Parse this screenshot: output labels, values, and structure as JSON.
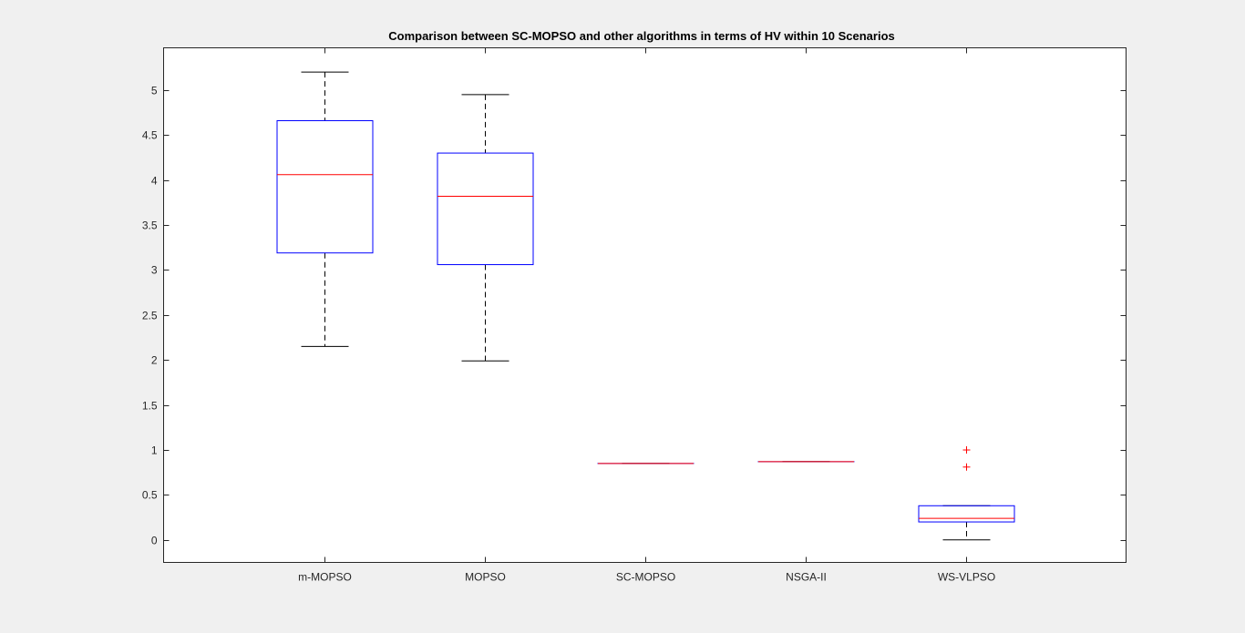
{
  "figure": {
    "background": "#f0f0f0",
    "axes_background": "#ffffff"
  },
  "chart_data": {
    "type": "boxplot",
    "title": "Comparison between SC-MOPSO and other algorithms in terms of HV within 10 Scenarios",
    "xlabel": "",
    "ylabel": "",
    "ylim": [
      -0.25,
      5.47
    ],
    "yticks": [
      0,
      0.5,
      1,
      1.5,
      2,
      2.5,
      3,
      3.5,
      4,
      4.5,
      5
    ],
    "ytick_labels": [
      "0",
      "0.5",
      "1",
      "1.5",
      "2",
      "2.5",
      "3",
      "3.5",
      "4",
      "4.5",
      "5"
    ],
    "grid": false,
    "colors": {
      "box": "#0000ff",
      "median": "#ff0000",
      "whisker": "#000000",
      "outlier": "#ff0000"
    },
    "categories": [
      "m-MOPSO",
      "MOPSO",
      "SC-MOPSO",
      "NSGA-II",
      "WS-VLPSO"
    ],
    "boxes": [
      {
        "label": "m-MOPSO",
        "whisker_low": 2.15,
        "q1": 3.19,
        "median": 4.06,
        "q3": 4.66,
        "whisker_high": 5.2,
        "outliers": []
      },
      {
        "label": "MOPSO",
        "whisker_low": 1.99,
        "q1": 3.06,
        "median": 3.82,
        "q3": 4.3,
        "whisker_high": 4.95,
        "outliers": []
      },
      {
        "label": "SC-MOPSO",
        "whisker_low": 0.85,
        "q1": 0.85,
        "median": 0.85,
        "q3": 0.85,
        "whisker_high": 0.85,
        "outliers": []
      },
      {
        "label": "NSGA-II",
        "whisker_low": 0.87,
        "q1": 0.87,
        "median": 0.87,
        "q3": 0.87,
        "whisker_high": 0.87,
        "outliers": []
      },
      {
        "label": "WS-VLPSO",
        "whisker_low": 0.0,
        "q1": 0.2,
        "median": 0.24,
        "q3": 0.38,
        "whisker_high": 0.38,
        "outliers": [
          1.0,
          0.81
        ]
      }
    ]
  }
}
